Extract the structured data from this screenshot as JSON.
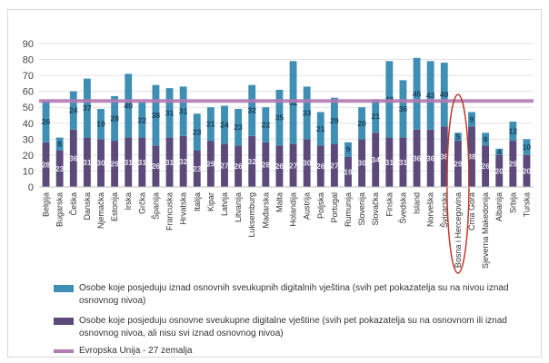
{
  "chart_data": {
    "type": "bar",
    "stacked": true,
    "ylim": [
      0,
      90
    ],
    "yticks": [
      0,
      10,
      20,
      30,
      40,
      50,
      60,
      70,
      80,
      90
    ],
    "categories": [
      "Belgija",
      "Bugarska",
      "Češka",
      "Danska",
      "Njemačka",
      "Estonija",
      "Irska",
      "Grčka",
      "Španija",
      "Francuska",
      "Hrvatska",
      "Italija",
      "Kipar",
      "Latvija",
      "Litvanija",
      "Luksemburg",
      "Mađarska",
      "Malta",
      "Holandija",
      "Austrija",
      "Poljska",
      "Portugal",
      "Rumunija",
      "Slovenija",
      "Slovačka",
      "Finska",
      "Švedska",
      "Island",
      "Norveška",
      "Švicarska",
      "Bosna i Hercegovina",
      "Crna Gora",
      "Sjeverna Makedonija",
      "Albanija",
      "Srbija",
      "Turska"
    ],
    "series": [
      {
        "name": "Osobe koje posjeduju osnovne sveukupne digitalne vještine (svih pet pokazatelja su na osnovnom ili iznad osnovnog nivoa, ali nisu svi iznad osnovnog nivoa)",
        "color": "#5b4a7a",
        "values": [
          28,
          23,
          36,
          31,
          30,
          29,
          31,
          31,
          26,
          31,
          32,
          23,
          29,
          27,
          26,
          32,
          28,
          26,
          27,
          30,
          26,
          27,
          19,
          30,
          34,
          31,
          31,
          36,
          36,
          38,
          29,
          38,
          26,
          20,
          29,
          20
        ]
      },
      {
        "name": "Osobe koje posjeduju iznad osnovnih sveukupnih digitalnih vještina (svih pet pokazatelja su na nivou iznad osnovnog nivoa)",
        "color": "#3f8fb5",
        "values": [
          26,
          8,
          24,
          37,
          19,
          28,
          40,
          22,
          38,
          31,
          31,
          23,
          21,
          24,
          23,
          32,
          22,
          35,
          52,
          33,
          21,
          29,
          9,
          20,
          21,
          48,
          36,
          45,
          43,
          40,
          5,
          9,
          8,
          4,
          12,
          10
        ]
      }
    ],
    "reference_line": {
      "name": "Evropska Unija - 27 zemalja",
      "value": 54,
      "color": "#b47bb3"
    },
    "highlight": "Bosna i Hercegovina"
  },
  "legend": [
    {
      "label": "Osobe koje posjeduju iznad osnovnih sveukupnih digitalnih vještina (svih pet pokazatelja su na nivou iznad osnovnog nivoa)",
      "color": "#3f8fb5",
      "kind": "box"
    },
    {
      "label": "Osobe koje posjeduju osnovne sveukupne digitalne vještine (svih pet pokazatelja su na osnovnom ili iznad osnovnog nivoa, ali nisu svi iznad osnovnog nivoa)",
      "color": "#5b4a7a",
      "kind": "box"
    },
    {
      "label": "Evropska Unija - 27 zemalja",
      "color": "#b47bb3",
      "kind": "line"
    }
  ]
}
